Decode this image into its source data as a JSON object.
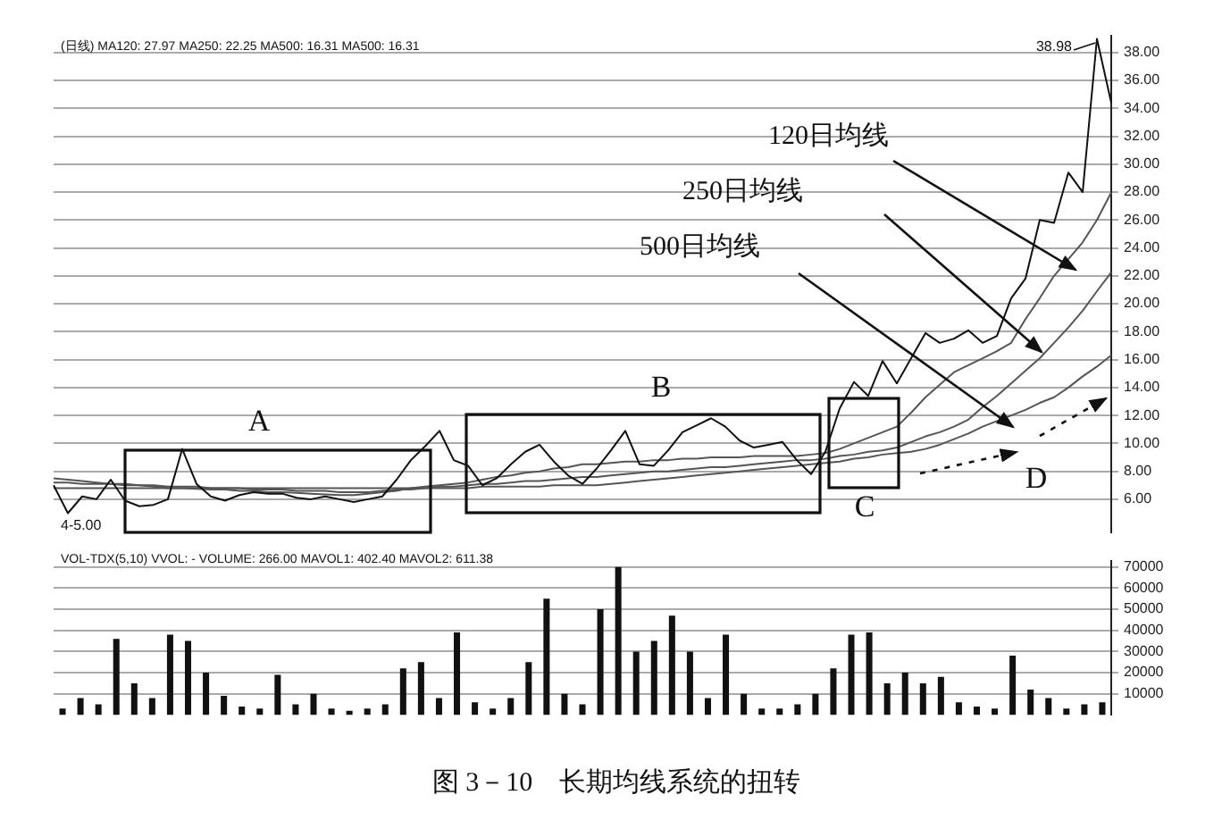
{
  "chart_data": [
    {
      "type": "line",
      "subtitle": "(日线) MA120: 27.97 MA250: 22.25 MA500: 16.31 MA500: 16.31",
      "annotations": [
        "A",
        "B",
        "C",
        "D",
        "120日均线",
        "250日均线",
        "500日均线",
        "4-5.00",
        "38.98",
        "图 3－10　长期均线系统的扭转"
      ],
      "categories": [
        null,
        null,
        null,
        null,
        null,
        null,
        null,
        null,
        null,
        null,
        null,
        null,
        null,
        null,
        null,
        null,
        null,
        null,
        null,
        null,
        null,
        null,
        null,
        null,
        null,
        null,
        null,
        null,
        null,
        null,
        null,
        null,
        null,
        null,
        null,
        null,
        null,
        null,
        null,
        null,
        null,
        null,
        null,
        null,
        null,
        null,
        null,
        null,
        null,
        null,
        null,
        null,
        null,
        null,
        null,
        null,
        null,
        null,
        null,
        null,
        null,
        null,
        null,
        null,
        null,
        null,
        null,
        null,
        null,
        null,
        null,
        null,
        null,
        null,
        null
      ],
      "series": [
        {
          "color": "#111111",
          "values": [
            7.0,
            5.0,
            6.2,
            6.0,
            7.4,
            5.9,
            5.5,
            5.6,
            6.0,
            9.6,
            7.1,
            6.2,
            5.9,
            6.3,
            6.5,
            6.4,
            6.4,
            6.1,
            6.0,
            6.2,
            6.0,
            5.8,
            6.0,
            6.2,
            7.4,
            8.8,
            9.8,
            10.9,
            8.8,
            8.4,
            7.0,
            7.5,
            8.5,
            9.4,
            9.9,
            8.7,
            7.7,
            7.1,
            8.2,
            9.5,
            10.9,
            8.5,
            8.4,
            9.5,
            10.8,
            11.3,
            11.8,
            11.2,
            10.2,
            9.7,
            9.9,
            10.1,
            8.8,
            7.8,
            9.4,
            12.5,
            14.4,
            13.4,
            15.9,
            14.3,
            16.1,
            17.9,
            17.2,
            17.5,
            18.1,
            17.2,
            17.7,
            20.4,
            21.8,
            26.0,
            25.8,
            29.4,
            28.0,
            38.98,
            34.4
          ]
        },
        {
          "color": "#555555",
          "values": [
            7.5,
            7.4,
            7.3,
            7.2,
            7.1,
            7.1,
            7.0,
            6.9,
            6.8,
            6.8,
            6.75,
            6.7,
            6.7,
            6.6,
            6.6,
            6.5,
            6.5,
            6.45,
            6.4,
            6.35,
            6.3,
            6.3,
            6.4,
            6.5,
            6.6,
            6.8,
            6.9,
            7.0,
            7.1,
            7.2,
            7.4,
            7.6,
            7.7,
            7.9,
            8.0,
            8.2,
            8.3,
            8.5,
            8.5,
            8.6,
            8.7,
            8.7,
            8.8,
            8.8,
            8.9,
            8.9,
            9.0,
            9.0,
            9.0,
            9.1,
            9.1,
            9.1,
            9.1,
            9.2,
            9.3,
            9.6,
            10.0,
            10.4,
            10.8,
            11.2,
            12.2,
            13.3,
            14.2,
            15.1,
            15.6,
            16.1,
            16.6,
            17.2,
            18.9,
            20.4,
            22.0,
            23.2,
            24.4,
            26.0,
            27.97
          ]
        },
        {
          "color": "#555555",
          "values": [
            7.2,
            7.2,
            7.1,
            7.1,
            7.1,
            7.0,
            7.0,
            7.0,
            6.9,
            6.9,
            6.9,
            6.8,
            6.8,
            6.8,
            6.7,
            6.7,
            6.7,
            6.6,
            6.6,
            6.6,
            6.5,
            6.5,
            6.5,
            6.6,
            6.7,
            6.7,
            6.8,
            6.9,
            6.9,
            7.0,
            7.1,
            7.1,
            7.2,
            7.3,
            7.3,
            7.4,
            7.5,
            7.6,
            7.6,
            7.7,
            7.8,
            7.9,
            8.0,
            8.0,
            8.1,
            8.2,
            8.3,
            8.3,
            8.4,
            8.5,
            8.6,
            8.7,
            8.8,
            8.8,
            8.9,
            9.1,
            9.2,
            9.4,
            9.5,
            9.7,
            10.1,
            10.5,
            10.8,
            11.2,
            11.7,
            12.6,
            13.4,
            14.3,
            15.2,
            16.1,
            17.2,
            18.3,
            19.5,
            20.9,
            22.25
          ]
        },
        {
          "color": "#555555",
          "values": [
            6.8,
            6.8,
            6.8,
            6.8,
            6.8,
            6.8,
            6.8,
            6.8,
            6.8,
            6.8,
            6.8,
            6.8,
            6.8,
            6.8,
            6.8,
            6.8,
            6.8,
            6.8,
            6.8,
            6.8,
            6.8,
            6.8,
            6.8,
            6.8,
            6.8,
            6.8,
            6.8,
            6.8,
            6.8,
            6.8,
            6.9,
            6.9,
            6.9,
            6.9,
            6.9,
            7.0,
            7.0,
            7.0,
            7.0,
            7.1,
            7.2,
            7.3,
            7.4,
            7.5,
            7.6,
            7.7,
            7.8,
            7.9,
            8.0,
            8.1,
            8.2,
            8.3,
            8.4,
            8.5,
            8.6,
            8.7,
            8.9,
            9.0,
            9.2,
            9.3,
            9.4,
            9.6,
            9.9,
            10.3,
            10.7,
            11.2,
            11.6,
            12.0,
            12.4,
            12.9,
            13.3,
            14.0,
            14.8,
            15.5,
            16.31
          ]
        }
      ],
      "ylim": [
        3.6,
        39.2
      ],
      "yticks": [
        {
          "value": 6,
          "label": "6.00"
        },
        {
          "value": 8,
          "label": "8.00"
        },
        {
          "value": 10,
          "label": "10.00"
        },
        {
          "value": 12,
          "label": "12.00"
        },
        {
          "value": 14,
          "label": "14.00"
        },
        {
          "value": 16,
          "label": "16.00"
        },
        {
          "value": 18,
          "label": "18.00"
        },
        {
          "value": 20,
          "label": "20.00"
        },
        {
          "value": 22,
          "label": "22.00"
        },
        {
          "value": 24,
          "label": "24.00"
        },
        {
          "value": 26,
          "label": "26.00"
        },
        {
          "value": 28,
          "label": "28.00"
        },
        {
          "value": 30,
          "label": "30.00"
        },
        {
          "value": 32,
          "label": "32.00"
        },
        {
          "value": 34,
          "label": "34.00"
        },
        {
          "value": 36,
          "label": "36.00"
        },
        {
          "value": 38,
          "label": "38.00"
        }
      ],
      "grid": "y",
      "legend": false,
      "tick_labels": "y",
      "line_style": "solid",
      "marker": "none"
    },
    {
      "type": "bar",
      "subtitle": "VOL-TDX(5,10) VVOL: - VOLUME: 266.00 MAVOL1: 402.40 MAVOL2: 611.38",
      "categories": [
        null,
        null,
        null,
        null,
        null,
        null,
        null,
        null,
        null,
        null,
        null,
        null,
        null,
        null,
        null,
        null,
        null,
        null,
        null,
        null,
        null,
        null,
        null,
        null,
        null,
        null,
        null,
        null,
        null,
        null,
        null,
        null,
        null,
        null,
        null,
        null,
        null,
        null,
        null,
        null,
        null,
        null,
        null,
        null,
        null,
        null,
        null,
        null,
        null,
        null,
        null,
        null,
        null,
        null,
        null,
        null,
        null,
        null,
        null
      ],
      "values": [
        3000,
        8000,
        5000,
        36000,
        15000,
        8000,
        38000,
        35000,
        20000,
        9000,
        4000,
        3000,
        19000,
        5000,
        10000,
        3000,
        2000,
        3000,
        5000,
        22000,
        25000,
        8000,
        39000,
        6000,
        3000,
        8000,
        25000,
        55000,
        10000,
        5000,
        50000,
        70000,
        30000,
        35000,
        47000,
        30000,
        8000,
        38000,
        10000,
        3000,
        3000,
        5000,
        10000,
        22000,
        38000,
        39000,
        15000,
        20000,
        15000,
        18000,
        6000,
        4000,
        3000,
        28000,
        12000,
        8000,
        3000,
        5000,
        6000
      ],
      "color": "#111111",
      "ylim": [
        0,
        73000
      ],
      "yticks": [
        10000,
        20000,
        30000,
        40000,
        50000,
        60000,
        70000
      ],
      "grid": "y",
      "legend": false,
      "tick_labels": "y"
    }
  ]
}
